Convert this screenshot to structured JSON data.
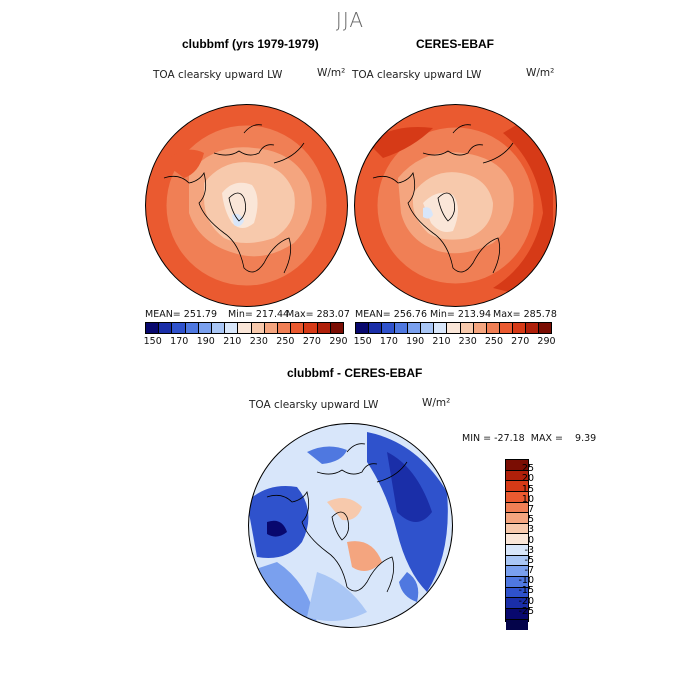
{
  "season": "JJA",
  "panels": [
    {
      "title": "clubbmf (yrs 1979-1979)",
      "variable": "TOA clearsky upward LW",
      "units": "W/m²",
      "mean": "MEAN= 251.79",
      "min": "Min= 217.44",
      "max": "Max= 283.07"
    },
    {
      "title": "CERES-EBAF",
      "variable": "TOA clearsky upward LW",
      "units": "W/m²",
      "mean": "MEAN= 256.76",
      "min": "Min= 213.94",
      "max": "Max= 285.78"
    }
  ],
  "diff_panel": {
    "title": "clubbmf - CERES-EBAF",
    "variable": "TOA clearsky upward LW",
    "units": "W/m²",
    "minmax": "MIN = -27.18  MAX =    9.39"
  },
  "colorbar_main": {
    "ticks": [
      "150",
      "170",
      "190",
      "210",
      "230",
      "250",
      "270",
      "290"
    ],
    "colors": [
      "#08086e",
      "#1a2ea8",
      "#2f52cc",
      "#4f78e0",
      "#7aa0ee",
      "#a9c6f5",
      "#d8e6fa",
      "#fae6d8",
      "#f7c9ac",
      "#f4a57f",
      "#f07f55",
      "#ea5a30",
      "#d63a17",
      "#b0200a",
      "#7a0d03"
    ]
  },
  "colorbar_diff": {
    "ticks": [
      "25",
      "20",
      "15",
      "10",
      "7",
      "5",
      "3",
      "0",
      "-3",
      "-5",
      "-7",
      "-10",
      "-15",
      "-20",
      "-25"
    ],
    "colors": [
      "#7a0d03",
      "#b0200a",
      "#d63a17",
      "#ea5a30",
      "#f07f55",
      "#f4a57f",
      "#f7c9ac",
      "#fae6d8",
      "#d8e6fa",
      "#a9c6f5",
      "#7aa0ee",
      "#4f78e0",
      "#2f52cc",
      "#1a2ea8",
      "#08086e",
      "#04044a"
    ]
  }
}
